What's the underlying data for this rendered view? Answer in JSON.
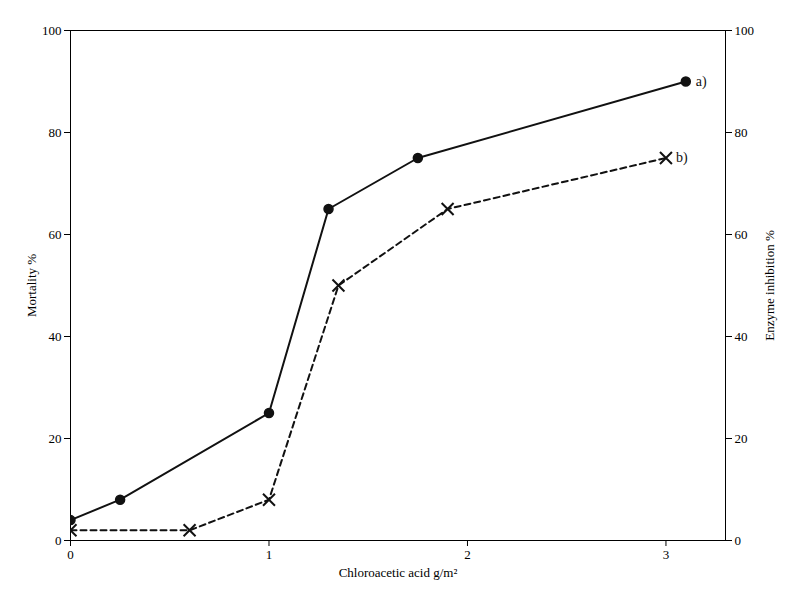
{
  "chart_data": {
    "type": "line",
    "xlabel": "Chloroacetic acid g/m²",
    "ylabel": "Mortality %",
    "y2label": "Enzyme inhibition %",
    "series": [
      {
        "name": "a)",
        "x": [
          0,
          0.25,
          1.0,
          1.3,
          1.75,
          3.1
        ],
        "values": [
          4,
          8,
          25,
          65,
          75,
          90
        ],
        "color": "#111111",
        "marker": "circle",
        "line_style": "solid"
      },
      {
        "name": "b)",
        "x": [
          0,
          0.6,
          1.0,
          1.35,
          1.9,
          3.0
        ],
        "values": [
          2,
          2,
          8,
          50,
          65,
          75
        ],
        "color": "#111111",
        "marker": "x",
        "line_style": "dashed"
      }
    ],
    "xlim": [
      0,
      3.3
    ],
    "ylim": [
      0,
      100
    ],
    "y2lim": [
      0,
      100
    ],
    "xticks": [
      0,
      1,
      2,
      3
    ],
    "yticks": [
      0,
      20,
      40,
      60,
      80,
      100
    ],
    "y2ticks": [
      0,
      20,
      40,
      60,
      80,
      100
    ],
    "grid": false
  }
}
